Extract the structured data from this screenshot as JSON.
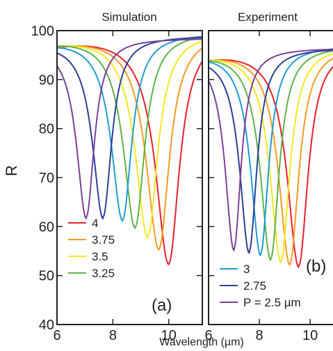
{
  "figure": {
    "ylabel": "R",
    "xlabel": "Wavelength (µm)"
  },
  "chart_data": [
    {
      "type": "line",
      "title": "Simulation",
      "panel_label": "(a)",
      "xlim": [
        6,
        11
      ],
      "ylim": [
        40,
        100
      ],
      "xticks": [
        "6",
        "8",
        "10"
      ],
      "yticks": [
        "40",
        "50",
        "60",
        "70",
        "80",
        "90",
        "100"
      ],
      "legend_placement": "bottom-left",
      "series": [
        {
          "name": "4",
          "color": "#e8202a",
          "min": [
            10.0,
            52.5
          ],
          "base": 99.8
        },
        {
          "name": "3.75",
          "color": "#f79a1e",
          "min": [
            9.65,
            55.5
          ],
          "base": 99.8
        },
        {
          "name": "3.5",
          "color": "#f5e81c",
          "min": [
            9.25,
            58
          ],
          "base": 99.8
        },
        {
          "name": "3.25",
          "color": "#5cb447",
          "min": [
            8.8,
            60
          ],
          "base": 99.8
        },
        {
          "name": "",
          "color": "#1e9ad6",
          "min": [
            8.35,
            61.5
          ],
          "base": 99.5
        },
        {
          "name": "",
          "color": "#2a3f97",
          "min": [
            7.65,
            62
          ],
          "base": 99
        },
        {
          "name": "",
          "color": "#7b3f98",
          "min": [
            7.05,
            62
          ],
          "base": 98.5
        }
      ]
    },
    {
      "type": "line",
      "title": "Experiment",
      "panel_label": "(b)",
      "xlim": [
        6,
        11
      ],
      "ylim": [
        40,
        100
      ],
      "xticks": [
        "6",
        "8",
        "10"
      ],
      "legend_placement": "bottom-left",
      "series": [
        {
          "name": "",
          "color": "#e8202a",
          "min": [
            9.55,
            52
          ],
          "base": 97
        },
        {
          "name": "",
          "color": "#f79a1e",
          "min": [
            9.2,
            52.5
          ],
          "base": 97
        },
        {
          "name": "",
          "color": "#f5e81c",
          "min": [
            8.85,
            53
          ],
          "base": 97
        },
        {
          "name": "",
          "color": "#5cb447",
          "min": [
            8.45,
            53.5
          ],
          "base": 97
        },
        {
          "name": "3",
          "color": "#1e9ad6",
          "min": [
            8.05,
            54.5
          ],
          "base": 97
        },
        {
          "name": "2.75",
          "color": "#2a3f97",
          "min": [
            7.6,
            55
          ],
          "base": 96.5
        },
        {
          "name": "P = 2.5 µm",
          "color": "#7b3f98",
          "min": [
            7.0,
            55.5
          ],
          "base": 96.5
        }
      ]
    }
  ]
}
